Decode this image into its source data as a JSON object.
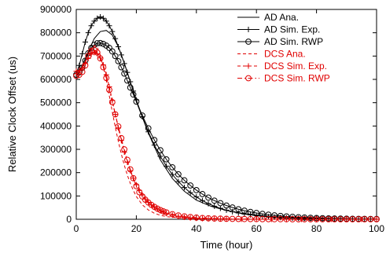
{
  "chart_data": {
    "type": "line",
    "xlabel": "Time (hour)",
    "ylabel": "Relative Clock Offset (us)",
    "xlim": [
      0,
      100
    ],
    "ylim": [
      0,
      900000
    ],
    "xticks": [
      0,
      20,
      40,
      60,
      80,
      100
    ],
    "yticks": [
      0,
      100000,
      200000,
      300000,
      400000,
      500000,
      600000,
      700000,
      800000,
      900000
    ],
    "grid": false,
    "legend_position": "top-right",
    "series": [
      {
        "name": "AD Ana.",
        "color": "#000000",
        "dash": "solid",
        "marker": "none",
        "x": [
          0,
          2,
          4,
          6,
          8,
          10,
          12,
          14,
          16,
          18,
          20,
          24,
          28,
          32,
          36,
          40,
          45,
          50,
          55,
          60,
          65,
          70,
          75,
          80,
          85,
          90,
          95,
          100
        ],
        "y": [
          615000,
          660000,
          720000,
          775000,
          805000,
          810000,
          790000,
          740000,
          670000,
          590000,
          505000,
          370000,
          255000,
          175000,
          120000,
          82000,
          55000,
          38000,
          26000,
          18000,
          12000,
          8000,
          5500,
          4000,
          2800,
          2000,
          1400,
          1000
        ]
      },
      {
        "name": "AD Sim. Exp.",
        "color": "#000000",
        "dash": "solid",
        "marker": "plus",
        "x": [
          0,
          1,
          2,
          3,
          4,
          5,
          6,
          7,
          8,
          9,
          10,
          11,
          12,
          13,
          14,
          15,
          16,
          17,
          18,
          19,
          20,
          22,
          24,
          26,
          28,
          30,
          32,
          34,
          36,
          38,
          40,
          42,
          44,
          46,
          48,
          50,
          52,
          54,
          56,
          58,
          60,
          62,
          64,
          66,
          68,
          70,
          72,
          74,
          76,
          78,
          80,
          82,
          84,
          86,
          88,
          90,
          92,
          94,
          96,
          98,
          100
        ],
        "y": [
          625000,
          660000,
          710000,
          760000,
          800000,
          830000,
          850000,
          862000,
          868000,
          862000,
          850000,
          830000,
          805000,
          775000,
          740000,
          705000,
          668000,
          630000,
          590000,
          550000,
          512000,
          440000,
          375000,
          318000,
          270000,
          228000,
          192000,
          162000,
          136000,
          114000,
          96000,
          80000,
          67000,
          56000,
          47000,
          39000,
          32500,
          27000,
          22500,
          18800,
          15700,
          13000,
          10800,
          9000,
          7500,
          6200,
          5200,
          4300,
          3600,
          3000,
          2500,
          2100,
          1750,
          1450,
          1200,
          1000,
          850,
          700,
          600,
          500,
          400
        ]
      },
      {
        "name": "AD Sim. RWP",
        "color": "#000000",
        "dash": "solid",
        "marker": "circle",
        "x": [
          0,
          1,
          2,
          3,
          4,
          5,
          6,
          7,
          8,
          9,
          10,
          11,
          12,
          13,
          14,
          15,
          16,
          17,
          18,
          19,
          20,
          22,
          24,
          26,
          28,
          30,
          32,
          34,
          36,
          38,
          40,
          42,
          44,
          46,
          48,
          50,
          52,
          54,
          56,
          58,
          60,
          62,
          64,
          66,
          68,
          70,
          72,
          74,
          76,
          78,
          80,
          82,
          84,
          86,
          88,
          90,
          92,
          94,
          96,
          98,
          100
        ],
        "y": [
          620000,
          630000,
          650000,
          680000,
          712000,
          735000,
          748000,
          755000,
          756000,
          752000,
          745000,
          735000,
          720000,
          700000,
          678000,
          652000,
          625000,
          595000,
          565000,
          535000,
          505000,
          445000,
          390000,
          340000,
          296000,
          257000,
          223000,
          193000,
          167000,
          145000,
          125000,
          108000,
          93000,
          80000,
          69000,
          59000,
          50500,
          43000,
          37000,
          31500,
          27000,
          23000,
          19600,
          16700,
          14200,
          12100,
          10300,
          8800,
          7500,
          6400,
          5400,
          4600,
          3900,
          3300,
          2800,
          2400,
          2000,
          1700,
          1450,
          1250,
          1050
        ]
      },
      {
        "name": "DCS Ana.",
        "color": "#e00000",
        "dash": "dashed",
        "marker": "none",
        "x": [
          0,
          2,
          4,
          5,
          6,
          7,
          8,
          9,
          10,
          11,
          12,
          13,
          14,
          15,
          16,
          17,
          18,
          19,
          20,
          22,
          24,
          26,
          28,
          30,
          35,
          40,
          45,
          50,
          60,
          70,
          80,
          90,
          100
        ],
        "y": [
          620000,
          650000,
          700000,
          730000,
          745000,
          738000,
          705000,
          655000,
          595000,
          530000,
          460000,
          395000,
          335000,
          280000,
          232000,
          190000,
          154000,
          124000,
          98000,
          62000,
          40000,
          26000,
          17000,
          11500,
          5000,
          2300,
          1100,
          500,
          150,
          60,
          30,
          20,
          10
        ]
      },
      {
        "name": "DCS Sim. Exp.",
        "color": "#e00000",
        "dash": "dashed",
        "marker": "plus",
        "x": [
          0,
          1,
          2,
          3,
          4,
          5,
          6,
          7,
          8,
          9,
          10,
          11,
          12,
          13,
          14,
          15,
          16,
          17,
          18,
          19,
          20,
          21,
          22,
          23,
          24,
          25,
          26,
          27,
          28,
          29,
          30,
          32,
          34,
          36,
          38,
          40,
          42,
          44,
          46,
          48,
          50,
          55,
          60,
          65,
          70,
          75,
          80,
          85,
          90,
          95,
          100
        ],
        "y": [
          635000,
          638000,
          648000,
          668000,
          690000,
          708000,
          715000,
          710000,
          692000,
          662000,
          620000,
          568000,
          510000,
          450000,
          392000,
          338000,
          288000,
          245000,
          208000,
          176000,
          148000,
          124000,
          104000,
          87000,
          73000,
          61000,
          51000,
          43000,
          36000,
          30000,
          25000,
          17500,
          12200,
          8500,
          6000,
          4200,
          3000,
          2100,
          1500,
          1100,
          800,
          400,
          200,
          120,
          70,
          40,
          25,
          15,
          10,
          8,
          5
        ]
      },
      {
        "name": "DCS Sim. RWP",
        "color": "#e00000",
        "dash": "dashdot",
        "marker": "circle",
        "x": [
          0,
          1,
          2,
          3,
          4,
          5,
          6,
          7,
          8,
          9,
          10,
          11,
          12,
          13,
          14,
          15,
          16,
          17,
          18,
          19,
          20,
          21,
          22,
          23,
          24,
          25,
          26,
          27,
          28,
          29,
          30,
          32,
          34,
          36,
          38,
          40,
          42,
          44,
          46,
          48,
          50,
          52,
          54,
          56,
          58,
          60,
          62,
          64,
          66,
          68,
          70,
          72,
          74,
          76,
          78,
          80,
          82,
          84,
          86,
          88,
          90,
          92,
          94,
          96,
          98,
          100
        ],
        "y": [
          615000,
          620000,
          632000,
          660000,
          700000,
          722000,
          726000,
          715000,
          690000,
          652000,
          606000,
          555000,
          502000,
          450000,
          398000,
          348000,
          300000,
          255000,
          214000,
          176000,
          142000,
          116000,
          98000,
          84000,
          72000,
          62000,
          53500,
          46000,
          39500,
          34000,
          29500,
          22000,
          16500,
          12500,
          9500,
          7300,
          5600,
          4300,
          3400,
          2700,
          2100,
          1700,
          1350,
          1100,
          900,
          720,
          580,
          470,
          380,
          310,
          250,
          200,
          165,
          135,
          110,
          90,
          75,
          60,
          50,
          40,
          33,
          27,
          22,
          18,
          15,
          12
        ]
      }
    ]
  }
}
